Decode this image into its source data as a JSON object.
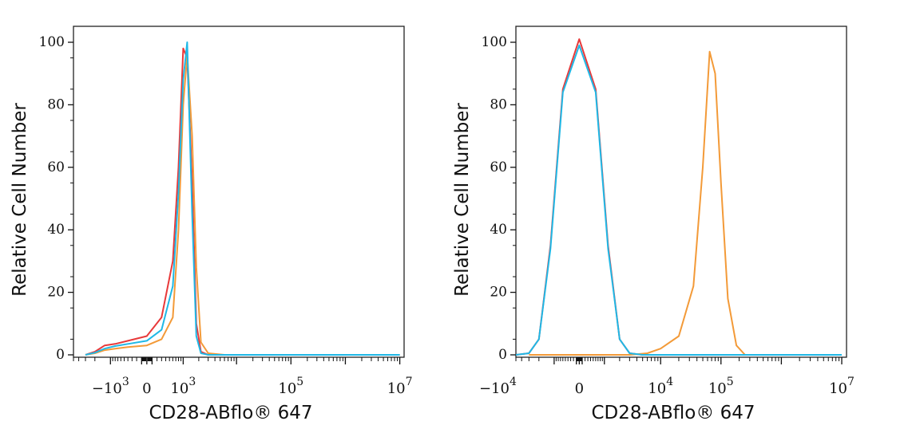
{
  "chart_data": [
    {
      "type": "line",
      "xlabel": "CD28-ABflo® 647",
      "ylabel": "Relative Cell Number",
      "ylim": [
        0,
        100
      ],
      "x_scale": "biexponential",
      "y_ticks": [
        "0",
        "20",
        "40",
        "60",
        "80",
        "100"
      ],
      "x_tick_labels": [
        {
          "base": "−10",
          "exp": "3",
          "value": -1000
        },
        {
          "base": "0",
          "exp": "",
          "value": 0
        },
        {
          "base": "10",
          "exp": "3",
          "value": 1000
        },
        {
          "base": "10",
          "exp": "5",
          "value": 100000
        },
        {
          "base": "10",
          "exp": "7",
          "value": 10000000
        }
      ],
      "grid": false,
      "series": [
        {
          "color": "#e8393a",
          "x": [
            -3000,
            -2000,
            -1300,
            -800,
            -400,
            0,
            300,
            600,
            800,
            1000,
            1200,
            1500,
            1800,
            2200,
            3000,
            6000,
            10000000
          ],
          "y": [
            0,
            1,
            3,
            3.5,
            4.5,
            6,
            12,
            30,
            60,
            98,
            95,
            55,
            10,
            1,
            0,
            0,
            0
          ]
        },
        {
          "color": "#f39a38",
          "x": [
            -3000,
            -2000,
            -1300,
            -800,
            -400,
            0,
            300,
            600,
            800,
            1000,
            1200,
            1500,
            1800,
            2200,
            3000,
            6000,
            10000000
          ],
          "y": [
            0,
            0.5,
            1.5,
            2,
            2.5,
            3,
            5,
            12,
            40,
            80,
            96,
            70,
            28,
            4,
            0.5,
            0,
            0
          ]
        },
        {
          "color": "#1fb8e6",
          "x": [
            -3000,
            -2000,
            -1300,
            -800,
            -400,
            0,
            300,
            600,
            800,
            1000,
            1200,
            1500,
            1800,
            2200,
            3000,
            6000,
            10000000
          ],
          "y": [
            0,
            0.7,
            2,
            2.8,
            3.5,
            4.5,
            8,
            22,
            52,
            88,
            100,
            45,
            6,
            0.5,
            0,
            0,
            0
          ]
        }
      ]
    },
    {
      "type": "line",
      "xlabel": "CD28-ABflo® 647",
      "ylabel": "Relative Cell Number",
      "ylim": [
        0,
        100
      ],
      "x_scale": "biexponential",
      "y_ticks": [
        "0",
        "20",
        "40",
        "60",
        "80",
        "100"
      ],
      "x_tick_labels": [
        {
          "base": "−10",
          "exp": "4",
          "value": -10000
        },
        {
          "base": "0",
          "exp": "",
          "value": 0
        },
        {
          "base": "10",
          "exp": "4",
          "value": 10000
        },
        {
          "base": "10",
          "exp": "5",
          "value": 100000
        },
        {
          "base": "10",
          "exp": "7",
          "value": 10000000
        }
      ],
      "grid": false,
      "series": [
        {
          "color": "#e8393a",
          "x": [
            -5000,
            -3000,
            -2000,
            -1200,
            -600,
            0,
            600,
            1200,
            2000,
            3000,
            5000,
            10000000
          ],
          "y": [
            0,
            0.5,
            5,
            35,
            85,
            101,
            85,
            35,
            5,
            0.5,
            0,
            0
          ]
        },
        {
          "color": "#f39a38",
          "x": [
            -3000,
            3000,
            6000,
            10000,
            20000,
            35000,
            50000,
            65000,
            80000,
            100000,
            130000,
            180000,
            250000,
            10000000
          ],
          "y": [
            0,
            0,
            0.5,
            2,
            6,
            22,
            60,
            97,
            90,
            55,
            18,
            3,
            0,
            0
          ]
        },
        {
          "color": "#1fb8e6",
          "x": [
            -5000,
            -3000,
            -2000,
            -1200,
            -600,
            0,
            600,
            1200,
            2000,
            3000,
            5000,
            10000000
          ],
          "y": [
            0,
            0.5,
            5,
            34,
            84,
            99,
            84,
            34,
            5,
            0.5,
            0,
            0
          ]
        }
      ]
    }
  ]
}
